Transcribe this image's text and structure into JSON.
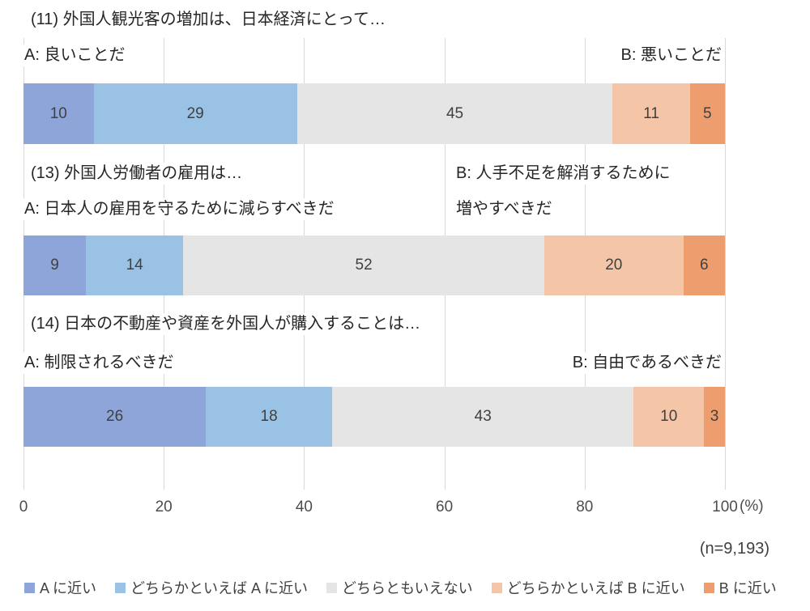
{
  "colors": {
    "background": "#ffffff",
    "grid": "#d9d9d9",
    "text": "#262626",
    "bar_label": "#404040",
    "axis_label": "#4d4d4d"
  },
  "chart_data": {
    "type": "bar",
    "variant": "horizontal-100-percent-stacked",
    "grid": "vertical-only",
    "legend_position": "bottom",
    "xlim": [
      0,
      100
    ],
    "x_ticks": [
      0,
      20,
      40,
      60,
      80,
      100
    ],
    "x_unit_label": "(%)",
    "sample_size_label": "(n=9,193)",
    "series_colors": [
      "#8da5d8",
      "#9ac2e5",
      "#e6e5e5",
      "#f5c5a8",
      "#ee9e6e"
    ],
    "legend": [
      "A に近い",
      "どちらかといえば A に近い",
      "どちらともいえない",
      "どちらかといえば B に近い",
      "B に近い"
    ],
    "questions": [
      {
        "title": "(11) 外国人観光客の増加は、日本経済にとって…",
        "label_a": "A: 良いことだ",
        "label_b": "B: 悪いことだ",
        "values": [
          10,
          29,
          45,
          11,
          5
        ]
      },
      {
        "title": "(13) 外国人労働者の雇用は…",
        "label_a": "A: 日本人の雇用を守るために減らすべきだ",
        "label_b_lines": [
          "B: 人手不足を解消するために",
          "増やすべきだ"
        ],
        "values": [
          9,
          14,
          52,
          20,
          6
        ]
      },
      {
        "title": "(14) 日本の不動産や資産を外国人が購入することは…",
        "label_a": "A: 制限されるべきだ",
        "label_b": "B: 自由であるべきだ",
        "values": [
          26,
          18,
          43,
          10,
          3
        ]
      }
    ]
  }
}
